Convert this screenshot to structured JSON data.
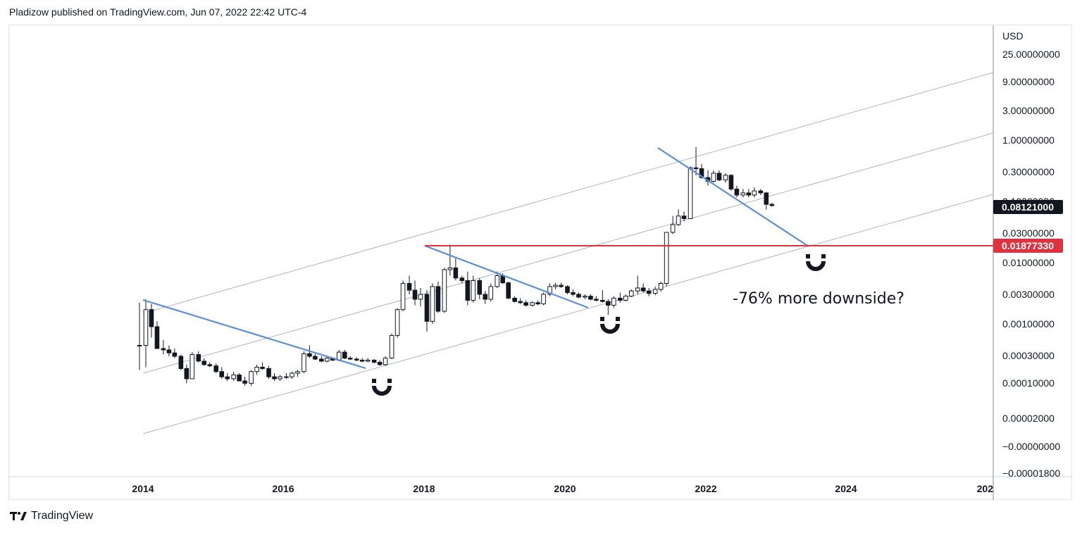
{
  "header": {
    "published_line": "Pladizow published on TradingView.com, Jun 07, 2022 22:42 UTC-4"
  },
  "footer": {
    "brand": "TradingView",
    "logo_icon": "tradingview-logo-icon"
  },
  "colors": {
    "trendline_blue": "#5b8fd6",
    "horizontal_red": "#e0313f",
    "channel_gray": "#b2b5be",
    "price_badge_black": "#131722",
    "price_badge_red": "#e0313f",
    "candle_up_fill": "#ffffff",
    "candle_down_fill": "#131722"
  },
  "chart_data": {
    "type": "candlestick",
    "currency_label": "USD",
    "y_scale": "log",
    "x_ticks": [
      "2014",
      "2016",
      "2018",
      "2020",
      "2022",
      "2024",
      "202"
    ],
    "y_ticks": [
      "25.00000000",
      "9.00000000",
      "3.00000000",
      "1.00000000",
      "0.30000000",
      "0.10000000",
      "0.03000000",
      "0.01000000",
      "0.00300000",
      "0.00100000",
      "0.00030000",
      "0.00010000",
      "0.00002000",
      "−0.00000000",
      "−0.00001800"
    ],
    "price_labels": {
      "current": "0.08121000",
      "target": "0.01877330"
    },
    "annotation": "-76% more downside?",
    "markers": [
      "magnet-icon",
      "magnet-icon",
      "magnet-icon"
    ],
    "candles_year_ohlc": [
      [
        2013.95,
        0.00045,
        0.0022,
        0.00018,
        0.00045
      ],
      [
        2014.04,
        0.00045,
        0.0025,
        0.0002,
        0.0017
      ],
      [
        2014.12,
        0.0017,
        0.0021,
        0.0006,
        0.0009
      ],
      [
        2014.2,
        0.0009,
        0.0011,
        0.0004,
        0.0004
      ],
      [
        2014.29,
        0.0004,
        0.00055,
        0.00032,
        0.00038
      ],
      [
        2014.37,
        0.00038,
        0.00045,
        0.0003,
        0.00034
      ],
      [
        2014.45,
        0.00034,
        0.0004,
        0.00028,
        0.0003
      ],
      [
        2014.54,
        0.0003,
        0.00032,
        0.00018,
        0.00019
      ],
      [
        2014.62,
        0.00019,
        0.00022,
        0.00011,
        0.00013
      ],
      [
        2014.7,
        0.00013,
        0.00035,
        0.00013,
        0.00032
      ],
      [
        2014.79,
        0.00032,
        0.00036,
        0.00024,
        0.00025
      ],
      [
        2014.87,
        0.00025,
        0.00028,
        0.00021,
        0.00022
      ],
      [
        2014.95,
        0.00022,
        0.00024,
        0.0002,
        0.00021
      ],
      [
        2015.04,
        0.00021,
        0.00023,
        0.00016,
        0.00017
      ],
      [
        2015.12,
        0.00017,
        0.0002,
        0.00013,
        0.00014
      ],
      [
        2015.2,
        0.00014,
        0.00016,
        0.00012,
        0.00013
      ],
      [
        2015.29,
        0.00013,
        0.00017,
        0.00012,
        0.00015
      ],
      [
        2015.37,
        0.00015,
        0.00016,
        0.00012,
        0.00012
      ],
      [
        2015.45,
        0.00012,
        0.00014,
        0.0001,
        0.00011
      ],
      [
        2015.54,
        0.00011,
        0.00018,
        0.0001,
        0.00017
      ],
      [
        2015.62,
        0.00017,
        0.00022,
        0.00015,
        0.0002
      ],
      [
        2015.7,
        0.0002,
        0.00024,
        0.00018,
        0.00019
      ],
      [
        2015.79,
        0.00019,
        0.00021,
        0.00013,
        0.00014
      ],
      [
        2015.87,
        0.00014,
        0.00016,
        0.00012,
        0.00013
      ],
      [
        2015.95,
        0.00013,
        0.00015,
        0.00012,
        0.00014
      ],
      [
        2016.04,
        0.00014,
        0.00016,
        0.00013,
        0.00014
      ],
      [
        2016.12,
        0.00014,
        0.00017,
        0.00013,
        0.00016
      ],
      [
        2016.2,
        0.00016,
        0.00018,
        0.00014,
        0.00017
      ],
      [
        2016.29,
        0.00017,
        0.00036,
        0.00016,
        0.00033
      ],
      [
        2016.37,
        0.00033,
        0.00045,
        0.00028,
        0.0003
      ],
      [
        2016.45,
        0.0003,
        0.00033,
        0.00026,
        0.00027
      ],
      [
        2016.54,
        0.00027,
        0.0003,
        0.00024,
        0.00025
      ],
      [
        2016.62,
        0.00025,
        0.00029,
        0.00024,
        0.00028
      ],
      [
        2016.7,
        0.00028,
        0.00029,
        0.00025,
        0.00026
      ],
      [
        2016.79,
        0.00026,
        0.00038,
        0.00025,
        0.00035
      ],
      [
        2016.87,
        0.00035,
        0.00038,
        0.00027,
        0.00028
      ],
      [
        2016.95,
        0.00028,
        0.0003,
        0.00026,
        0.00027
      ],
      [
        2017.04,
        0.00027,
        0.00029,
        0.00025,
        0.00026
      ],
      [
        2017.12,
        0.00026,
        0.00028,
        0.00024,
        0.00025
      ],
      [
        2017.2,
        0.00025,
        0.00028,
        0.00024,
        0.00026
      ],
      [
        2017.29,
        0.00026,
        0.00027,
        0.00023,
        0.00024
      ],
      [
        2017.37,
        0.00024,
        0.00026,
        0.00021,
        0.00022
      ],
      [
        2017.45,
        0.00022,
        0.0003,
        0.00021,
        0.00028
      ],
      [
        2017.54,
        0.00028,
        0.0007,
        0.00027,
        0.00065
      ],
      [
        2017.62,
        0.00065,
        0.0018,
        0.0006,
        0.0017
      ],
      [
        2017.7,
        0.0017,
        0.005,
        0.0016,
        0.0045
      ],
      [
        2017.79,
        0.0045,
        0.006,
        0.003,
        0.0035
      ],
      [
        2017.87,
        0.0035,
        0.005,
        0.002,
        0.0025
      ],
      [
        2017.95,
        0.0025,
        0.0038,
        0.0019,
        0.003
      ],
      [
        2018.04,
        0.003,
        0.0035,
        0.00075,
        0.0011
      ],
      [
        2018.12,
        0.0011,
        0.0045,
        0.001,
        0.004
      ],
      [
        2018.2,
        0.004,
        0.0048,
        0.0015,
        0.0016
      ],
      [
        2018.29,
        0.0016,
        0.008,
        0.0015,
        0.0075
      ],
      [
        2018.37,
        0.0075,
        0.019,
        0.006,
        0.008
      ],
      [
        2018.45,
        0.008,
        0.012,
        0.005,
        0.0055
      ],
      [
        2018.54,
        0.0055,
        0.006,
        0.0045,
        0.005
      ],
      [
        2018.62,
        0.005,
        0.007,
        0.002,
        0.0024
      ],
      [
        2018.7,
        0.0024,
        0.006,
        0.0022,
        0.005
      ],
      [
        2018.79,
        0.005,
        0.0055,
        0.0025,
        0.003
      ],
      [
        2018.87,
        0.003,
        0.0034,
        0.0021,
        0.0025
      ],
      [
        2018.95,
        0.0025,
        0.0045,
        0.0023,
        0.004
      ],
      [
        2019.04,
        0.004,
        0.007,
        0.0038,
        0.006
      ],
      [
        2019.12,
        0.006,
        0.0066,
        0.0044,
        0.0046
      ],
      [
        2019.2,
        0.0046,
        0.0048,
        0.0025,
        0.0026
      ],
      [
        2019.29,
        0.0026,
        0.0028,
        0.0022,
        0.0023
      ],
      [
        2019.37,
        0.0023,
        0.0026,
        0.0021,
        0.0022
      ],
      [
        2019.45,
        0.0022,
        0.0024,
        0.0019,
        0.002
      ],
      [
        2019.54,
        0.002,
        0.0023,
        0.0019,
        0.0022
      ],
      [
        2019.62,
        0.0022,
        0.0024,
        0.002,
        0.0021
      ],
      [
        2019.7,
        0.0021,
        0.0032,
        0.002,
        0.003
      ],
      [
        2019.79,
        0.003,
        0.0045,
        0.0028,
        0.004
      ],
      [
        2019.87,
        0.004,
        0.0046,
        0.0036,
        0.0042
      ],
      [
        2019.95,
        0.0042,
        0.0046,
        0.0038,
        0.004
      ],
      [
        2020.04,
        0.004,
        0.0042,
        0.003,
        0.0032
      ],
      [
        2020.12,
        0.0032,
        0.0036,
        0.0028,
        0.003
      ],
      [
        2020.2,
        0.003,
        0.0032,
        0.0026,
        0.0027
      ],
      [
        2020.29,
        0.0027,
        0.003,
        0.0025,
        0.0028
      ],
      [
        2020.37,
        0.0028,
        0.003,
        0.0024,
        0.0025
      ],
      [
        2020.45,
        0.0025,
        0.0028,
        0.0023,
        0.0024
      ],
      [
        2020.54,
        0.0024,
        0.0035,
        0.0022,
        0.0023
      ],
      [
        2020.62,
        0.0023,
        0.0025,
        0.0014,
        0.002
      ],
      [
        2020.7,
        0.002,
        0.0028,
        0.0018,
        0.0026
      ],
      [
        2020.79,
        0.0026,
        0.0032,
        0.0022,
        0.0024
      ],
      [
        2020.87,
        0.0024,
        0.003,
        0.0023,
        0.0028
      ],
      [
        2020.95,
        0.0028,
        0.0036,
        0.0027,
        0.0034
      ],
      [
        2021.04,
        0.0034,
        0.006,
        0.003,
        0.0038
      ],
      [
        2021.12,
        0.0038,
        0.0045,
        0.0032,
        0.0034
      ],
      [
        2021.2,
        0.0034,
        0.0038,
        0.0028,
        0.0031
      ],
      [
        2021.29,
        0.0031,
        0.004,
        0.0029,
        0.0036
      ],
      [
        2021.37,
        0.0036,
        0.0048,
        0.0033,
        0.0045
      ],
      [
        2021.45,
        0.0045,
        0.02,
        0.004,
        0.03
      ],
      [
        2021.54,
        0.03,
        0.055,
        0.028,
        0.04
      ],
      [
        2021.62,
        0.04,
        0.07,
        0.038,
        0.055
      ],
      [
        2021.7,
        0.055,
        0.065,
        0.045,
        0.05
      ],
      [
        2021.79,
        0.05,
        0.35,
        0.05,
        0.33
      ],
      [
        2021.87,
        0.33,
        0.72,
        0.25,
        0.32
      ],
      [
        2021.95,
        0.32,
        0.38,
        0.22,
        0.23
      ],
      [
        2022.04,
        0.23,
        0.3,
        0.17,
        0.2
      ],
      [
        2022.12,
        0.2,
        0.3,
        0.19,
        0.27
      ],
      [
        2022.2,
        0.27,
        0.3,
        0.2,
        0.21
      ],
      [
        2022.29,
        0.21,
        0.27,
        0.19,
        0.25
      ],
      [
        2022.37,
        0.25,
        0.26,
        0.14,
        0.15
      ],
      [
        2022.45,
        0.15,
        0.17,
        0.11,
        0.12
      ],
      [
        2022.54,
        0.12,
        0.15,
        0.11,
        0.13
      ],
      [
        2022.62,
        0.13,
        0.15,
        0.11,
        0.12
      ],
      [
        2022.7,
        0.12,
        0.16,
        0.11,
        0.14
      ],
      [
        2022.79,
        0.14,
        0.15,
        0.12,
        0.13
      ],
      [
        2022.87,
        0.13,
        0.135,
        0.07,
        0.085
      ],
      [
        2022.95,
        0.085,
        0.09,
        0.078,
        0.0812
      ]
    ]
  }
}
